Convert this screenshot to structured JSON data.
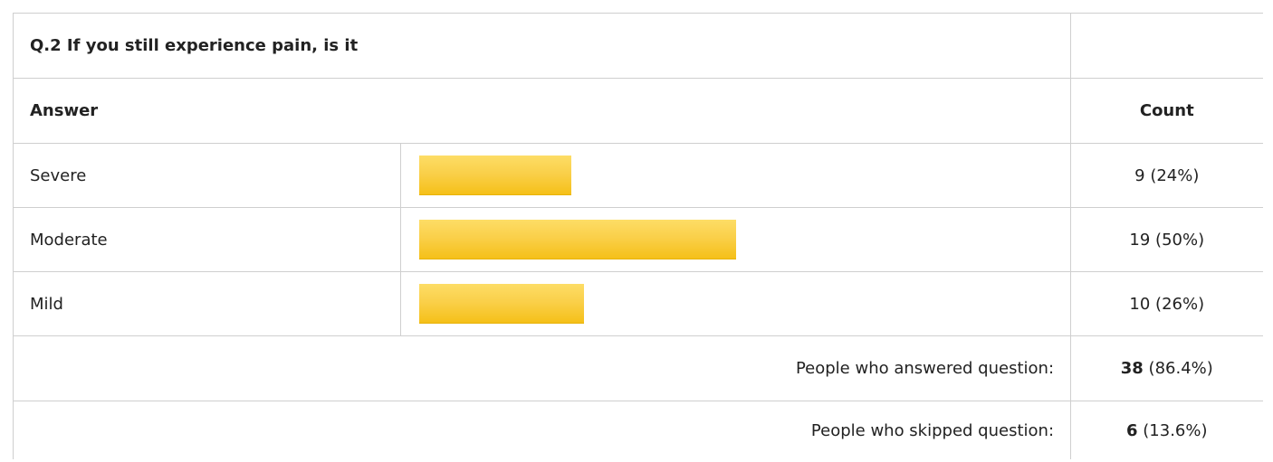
{
  "question": {
    "title": "Q.2 If you still experience pain, is it"
  },
  "headers": {
    "answer": "Answer",
    "count": "Count"
  },
  "rows": [
    {
      "label": "Severe",
      "count_text": "9 (24%)"
    },
    {
      "label": "Moderate",
      "count_text": "19 (50%)"
    },
    {
      "label": "Mild",
      "count_text": "10 (26%)"
    }
  ],
  "summary": {
    "answered_label": "People who answered question:",
    "answered_count": "38",
    "answered_pct": "(86.4%)",
    "skipped_label": "People who skipped question:",
    "skipped_count": "6",
    "skipped_pct": "(13.6%)"
  },
  "colors": {
    "bar": "#f7c626",
    "border": "#cfcfcf"
  },
  "chart_data": {
    "type": "bar",
    "orientation": "horizontal",
    "categories": [
      "Severe",
      "Moderate",
      "Mild"
    ],
    "values": [
      9,
      19,
      10
    ],
    "percentages": [
      24,
      50,
      26
    ],
    "title": "Q.2 If you still experience pain, is it"
  }
}
